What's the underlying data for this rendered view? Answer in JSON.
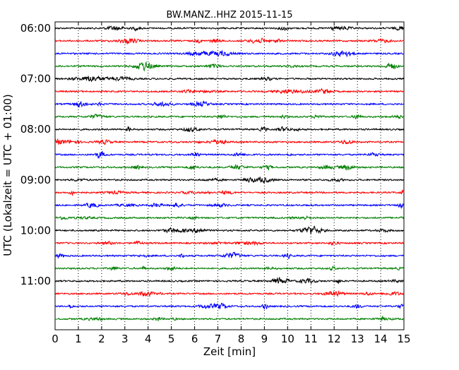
{
  "chart_data": {
    "type": "line",
    "title": "BW.MANZ..HHZ 2015-11-15",
    "xlabel": "Zeit  [min]",
    "ylabel": "UTC (Lokalzeit = UTC + 01:00)",
    "xlim": [
      0,
      15
    ],
    "x_ticks": [
      "0",
      "1",
      "2",
      "3",
      "4",
      "5",
      "6",
      "7",
      "8",
      "9",
      "10",
      "11",
      "12",
      "13",
      "14",
      "15"
    ],
    "y_ticks": [
      "06:00",
      "07:00",
      "08:00",
      "09:00",
      "10:00",
      "11:00"
    ],
    "y_tick_rows": [
      0,
      4,
      8,
      12,
      16,
      20
    ],
    "trace_count": 24,
    "trace_interval_min": 15,
    "trace_colors": [
      "#000000",
      "#ff0000",
      "#0000ff",
      "#007f00"
    ],
    "grid_x": true,
    "grid_y": false
  }
}
